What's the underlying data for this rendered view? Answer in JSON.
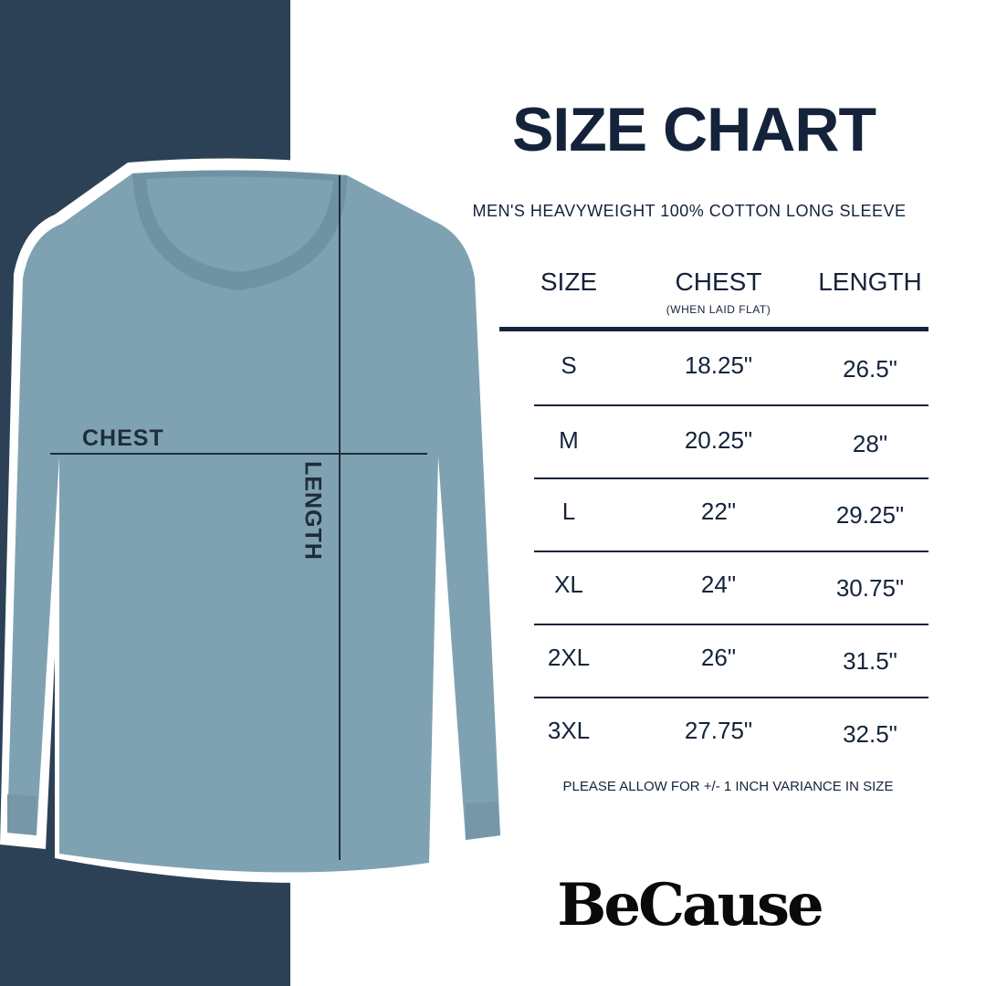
{
  "title": "SIZE CHART",
  "subtitle": "MEN'S HEAVYWEIGHT 100% COTTON LONG SLEEVE",
  "diagram": {
    "chest_label": "CHEST",
    "length_label": "LENGTH",
    "shirt_color": "#7fa2b2"
  },
  "colors": {
    "navy": "#2c4155",
    "text": "#14233a"
  },
  "table": {
    "headers": {
      "size": "SIZE",
      "chest": "CHEST",
      "chest_note": "(WHEN LAID FLAT)",
      "length": "LENGTH"
    },
    "rows": [
      {
        "size": "S",
        "chest": "18.25\"",
        "length": "26.5\""
      },
      {
        "size": "M",
        "chest": "20.25\"",
        "length": "28\""
      },
      {
        "size": "L",
        "chest": "22\"",
        "length": "29.25\""
      },
      {
        "size": "XL",
        "chest": "24\"",
        "length": "30.75\""
      },
      {
        "size": "2XL",
        "chest": "26\"",
        "length": "31.5\""
      },
      {
        "size": "3XL",
        "chest": "27.75\"",
        "length": "32.5\""
      }
    ]
  },
  "note": "PLEASE ALLOW FOR +/- 1 INCH VARIANCE IN SIZE",
  "brand": "BeCause"
}
